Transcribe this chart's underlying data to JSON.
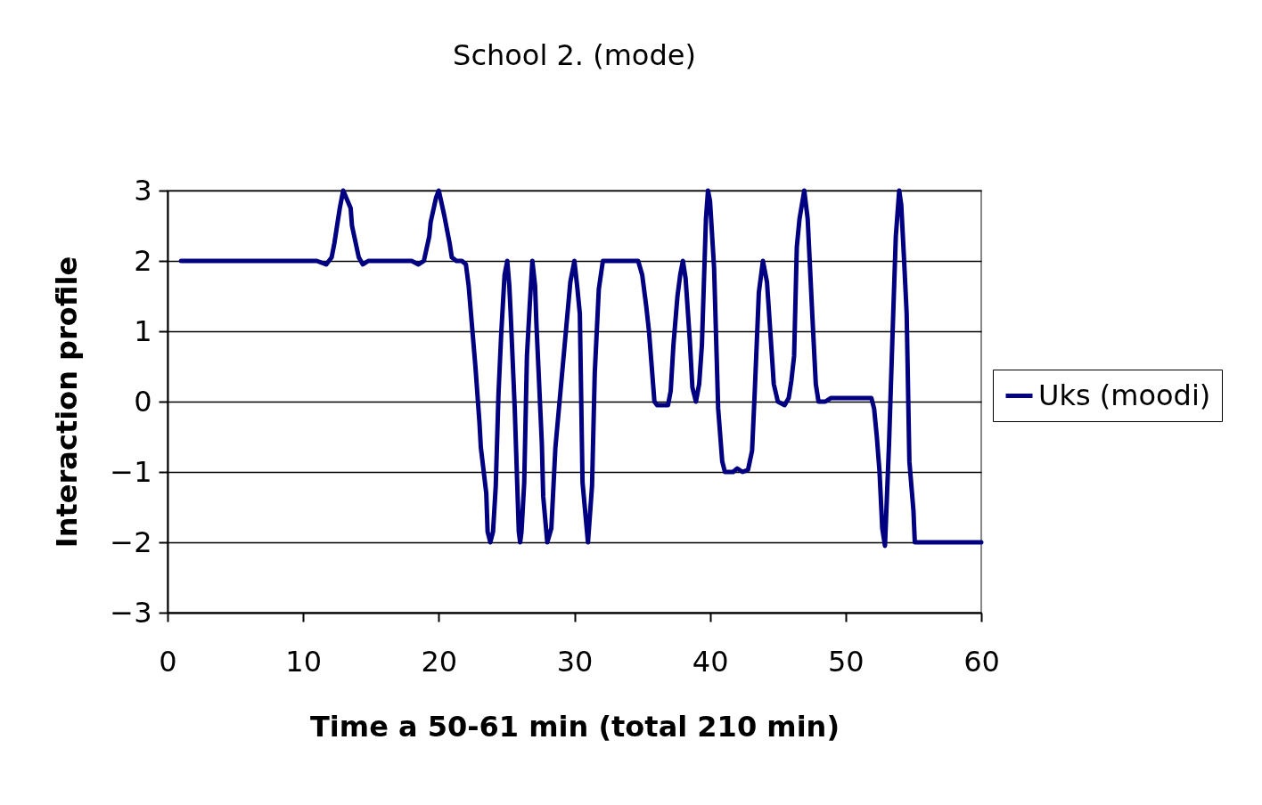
{
  "chart_data": {
    "type": "line",
    "title": "School 2. (mode)",
    "xlabel": "Time  a 50-61 min (total 210 min)",
    "ylabel": "Interaction profile",
    "xlim": [
      0,
      60
    ],
    "ylim": [
      -3,
      3
    ],
    "xticks": [
      0,
      10,
      20,
      30,
      40,
      50,
      60
    ],
    "yticks": [
      -3,
      -2,
      -1,
      0,
      1,
      2,
      3
    ],
    "grid": "y",
    "legend": "right",
    "series": [
      {
        "name": "Uks (moodi)",
        "color": "#000080",
        "x": [
          1,
          11,
          11.7,
          12.1,
          12.3,
          12.7,
          12.95,
          13.5,
          13.6,
          14.1,
          14.4,
          14.8,
          18,
          18.5,
          18.9,
          19.3,
          19.4,
          19.8,
          20,
          20.4,
          20.8,
          20.96,
          21.3,
          21.7,
          22,
          22.2,
          22.7,
          23,
          23.1,
          23.5,
          23.6,
          23.8,
          24,
          24.2,
          24.4,
          24.6,
          24.85,
          25.05,
          25.2,
          25.3,
          25.6,
          25.9,
          26,
          26.1,
          26.3,
          26.5,
          26.7,
          26.9,
          27.1,
          27.2,
          27.6,
          27.7,
          28,
          28.3,
          28.6,
          29.7,
          30,
          30.2,
          30.4,
          30.6,
          31,
          31.3,
          31.5,
          31.8,
          32.1,
          32.4,
          32.8,
          34,
          34.4,
          34.7,
          35,
          35.3,
          35.5,
          35.7,
          35.9,
          36.1,
          36.9,
          37.1,
          37.3,
          37.6,
          37.8,
          38,
          38.2,
          38.5,
          38.7,
          38.96,
          39.2,
          39.4,
          39.7,
          39.85,
          40,
          40.3,
          40.6,
          40.9,
          41.1,
          41.7,
          42,
          42.4,
          42.8,
          43.1,
          43.3,
          43.6,
          43.9,
          44.2,
          44.6,
          44.7,
          45,
          45.5,
          45.8,
          46,
          46.2,
          46.4,
          46.6,
          46.95,
          47.2,
          47.55,
          47.8,
          48,
          48.5,
          48.9,
          51,
          51.4,
          51.9,
          52.1,
          52.3,
          52.5,
          52.7,
          52.9,
          53.2,
          53.5,
          53.7,
          53.95,
          54.1,
          54.3,
          54.5,
          54.7,
          55,
          55.1,
          55.5,
          56,
          60
        ],
        "values": [
          2,
          2,
          1.95,
          2.05,
          2.25,
          2.75,
          3,
          2.75,
          2.5,
          2.05,
          1.95,
          2,
          2,
          1.95,
          2,
          2.35,
          2.55,
          2.9,
          3,
          2.65,
          2.25,
          2.05,
          2,
          2,
          1.95,
          1.65,
          0.5,
          -0.3,
          -0.65,
          -1.3,
          -1.85,
          -2,
          -1.85,
          -1.2,
          0.1,
          0.95,
          1.8,
          2,
          1.65,
          1.25,
          -0.1,
          -1.85,
          -2,
          -1.85,
          -1.15,
          0.65,
          1.35,
          2,
          1.65,
          1.1,
          -0.6,
          -1.35,
          -2,
          -1.8,
          -0.65,
          1.7,
          2,
          1.65,
          1.25,
          -1.15,
          -2,
          -1.2,
          0.4,
          1.6,
          2,
          2,
          2,
          2,
          2,
          2,
          1.8,
          1.35,
          1,
          0.5,
          0,
          -0.05,
          -0.05,
          0.15,
          0.8,
          1.5,
          1.8,
          2,
          1.75,
          0.9,
          0.2,
          0,
          0.25,
          0.8,
          2.6,
          3,
          2.85,
          1.9,
          -0.1,
          -0.85,
          -1,
          -1,
          -0.95,
          -1,
          -0.97,
          -0.7,
          0.15,
          1.55,
          2,
          1.7,
          0.55,
          0.25,
          0,
          -0.05,
          0.05,
          0.3,
          0.65,
          2.2,
          2.6,
          3,
          2.6,
          1.2,
          0.25,
          0,
          0,
          0.05,
          0.05,
          0.05,
          0.05,
          -0.1,
          -0.5,
          -1,
          -1.8,
          -2.05,
          -0.6,
          1.2,
          2.35,
          3,
          2.8,
          2.05,
          1.25,
          -0.85,
          -1.55,
          -2,
          -2,
          -2,
          -2
        ]
      }
    ]
  }
}
